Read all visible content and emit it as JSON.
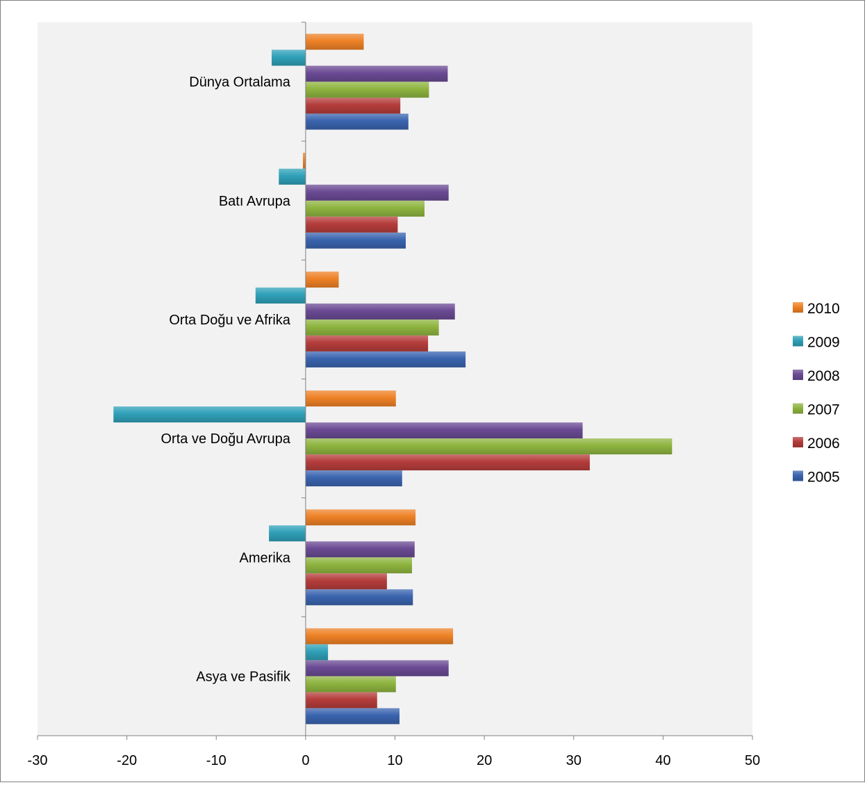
{
  "chart_data": {
    "type": "bar",
    "orientation": "horizontal",
    "categories": [
      "Asya ve Pasifik",
      "Amerika",
      "Orta ve Doğu Avrupa",
      "Orta Doğu ve Afrika",
      "Batı Avrupa",
      "Dünya Ortalama"
    ],
    "series": [
      {
        "name": "2005",
        "color": "#3a64ae",
        "values": [
          10.5,
          12.0,
          10.8,
          17.9,
          11.2,
          11.5
        ]
      },
      {
        "name": "2006",
        "color": "#b43d3b",
        "values": [
          8.0,
          9.1,
          31.8,
          13.7,
          10.3,
          10.6
        ]
      },
      {
        "name": "2007",
        "color": "#8eb43f",
        "values": [
          10.1,
          11.9,
          41.0,
          14.9,
          13.3,
          13.8
        ]
      },
      {
        "name": "2008",
        "color": "#6a4a93",
        "values": [
          16.0,
          12.2,
          31.0,
          16.7,
          16.0,
          15.9
        ]
      },
      {
        "name": "2009",
        "color": "#2fa0b8",
        "values": [
          2.5,
          -4.1,
          -21.5,
          -5.6,
          -3.0,
          -3.8
        ]
      },
      {
        "name": "2010",
        "color": "#ee8126",
        "values": [
          16.5,
          12.3,
          10.1,
          3.7,
          -0.3,
          6.5
        ]
      }
    ],
    "xlim": [
      -30,
      50
    ],
    "xticks": [
      "-30",
      "-20",
      "-10",
      "0",
      "10",
      "20",
      "30",
      "40",
      "50"
    ],
    "legend_position": "right",
    "plot_background": "#f2f2f2",
    "grid": false
  }
}
